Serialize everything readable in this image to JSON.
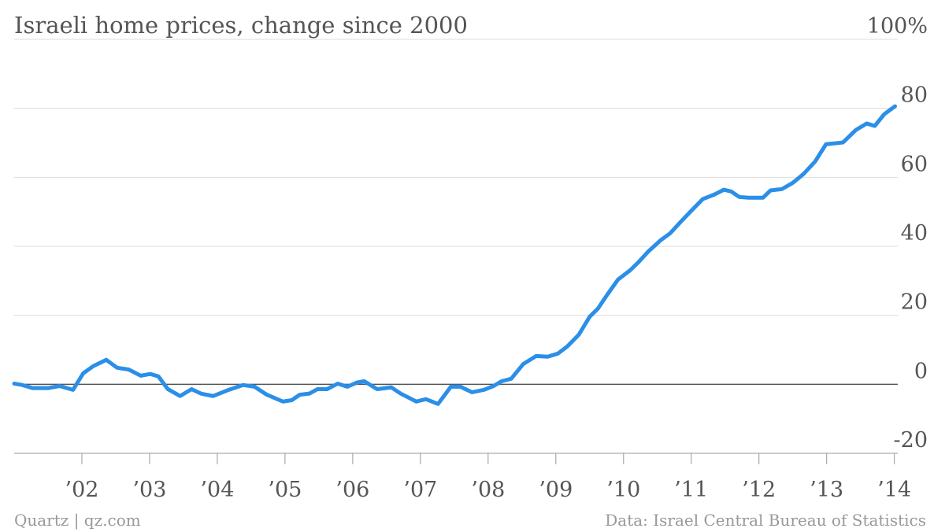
{
  "chart_data": {
    "type": "line",
    "title": "Israeli home prices, change since 2000",
    "source": "Data: Israel Central Bureau of Statistics",
    "credit": "Quartz | qz.com",
    "x": [
      2001.0,
      2001.12,
      2001.27,
      2001.5,
      2001.67,
      2001.87,
      2002.02,
      2002.17,
      2002.36,
      2002.52,
      2002.69,
      2002.87,
      2003.01,
      2003.13,
      2003.27,
      2003.45,
      2003.62,
      2003.76,
      2003.94,
      2004.17,
      2004.38,
      2004.55,
      2004.73,
      2004.97,
      2005.1,
      2005.22,
      2005.36,
      2005.48,
      2005.62,
      2005.78,
      2005.92,
      2006.06,
      2006.17,
      2006.36,
      2006.57,
      2006.71,
      2006.94,
      2007.08,
      2007.26,
      2007.45,
      2007.59,
      2007.76,
      2007.94,
      2008.08,
      2008.2,
      2008.34,
      2008.52,
      2008.71,
      2008.88,
      2009.03,
      2009.17,
      2009.34,
      2009.5,
      2009.62,
      2009.76,
      2009.92,
      2010.1,
      2010.22,
      2010.36,
      2010.55,
      2010.69,
      2010.83,
      2011.01,
      2011.17,
      2011.34,
      2011.48,
      2011.59,
      2011.71,
      2011.85,
      2012.06,
      2012.17,
      2012.34,
      2012.5,
      2012.66,
      2012.83,
      2012.99,
      2013.24,
      2013.43,
      2013.59,
      2013.71,
      2013.85,
      2014.01
    ],
    "series": [
      {
        "name": "Home prices",
        "color": "#2b8fe8",
        "values": [
          0.2,
          -0.2,
          -1.1,
          -1.1,
          -0.5,
          -1.6,
          3.2,
          5.3,
          7.1,
          4.8,
          4.3,
          2.5,
          3.0,
          2.3,
          -1.4,
          -3.4,
          -1.4,
          -2.7,
          -3.4,
          -1.6,
          -0.2,
          -0.7,
          -3.0,
          -5.0,
          -4.6,
          -3.0,
          -2.7,
          -1.4,
          -1.4,
          0.2,
          -0.7,
          0.5,
          0.9,
          -1.4,
          -0.9,
          -2.7,
          -5.0,
          -4.3,
          -5.7,
          -0.7,
          -0.7,
          -2.3,
          -1.6,
          -0.5,
          0.9,
          1.6,
          5.9,
          8.2,
          8.0,
          8.9,
          11.0,
          14.4,
          19.6,
          21.9,
          26.0,
          30.4,
          33.1,
          35.4,
          38.4,
          41.8,
          43.8,
          46.8,
          50.5,
          53.7,
          55.0,
          56.4,
          55.9,
          54.3,
          54.1,
          54.1,
          56.2,
          56.6,
          58.4,
          61.0,
          64.6,
          69.6,
          70.1,
          73.7,
          75.6,
          74.9,
          78.3,
          80.6
        ]
      }
    ],
    "xlim": [
      2001,
      2014.05
    ],
    "xticks": [
      {
        "value": 2002,
        "label": "’02"
      },
      {
        "value": 2003,
        "label": "’03"
      },
      {
        "value": 2004,
        "label": "’04"
      },
      {
        "value": 2005,
        "label": "’05"
      },
      {
        "value": 2006,
        "label": "’06"
      },
      {
        "value": 2007,
        "label": "’07"
      },
      {
        "value": 2008,
        "label": "’08"
      },
      {
        "value": 2009,
        "label": "’09"
      },
      {
        "value": 2010,
        "label": "’10"
      },
      {
        "value": 2011,
        "label": "’11"
      },
      {
        "value": 2012,
        "label": "’12"
      },
      {
        "value": 2013,
        "label": "’13"
      },
      {
        "value": 2014,
        "label": "’14"
      }
    ],
    "ylim": [
      -20,
      100
    ],
    "yticks": [
      -20,
      0,
      20,
      40,
      60,
      80,
      {
        "value": 100,
        "label": "100%"
      }
    ],
    "grid": true
  }
}
